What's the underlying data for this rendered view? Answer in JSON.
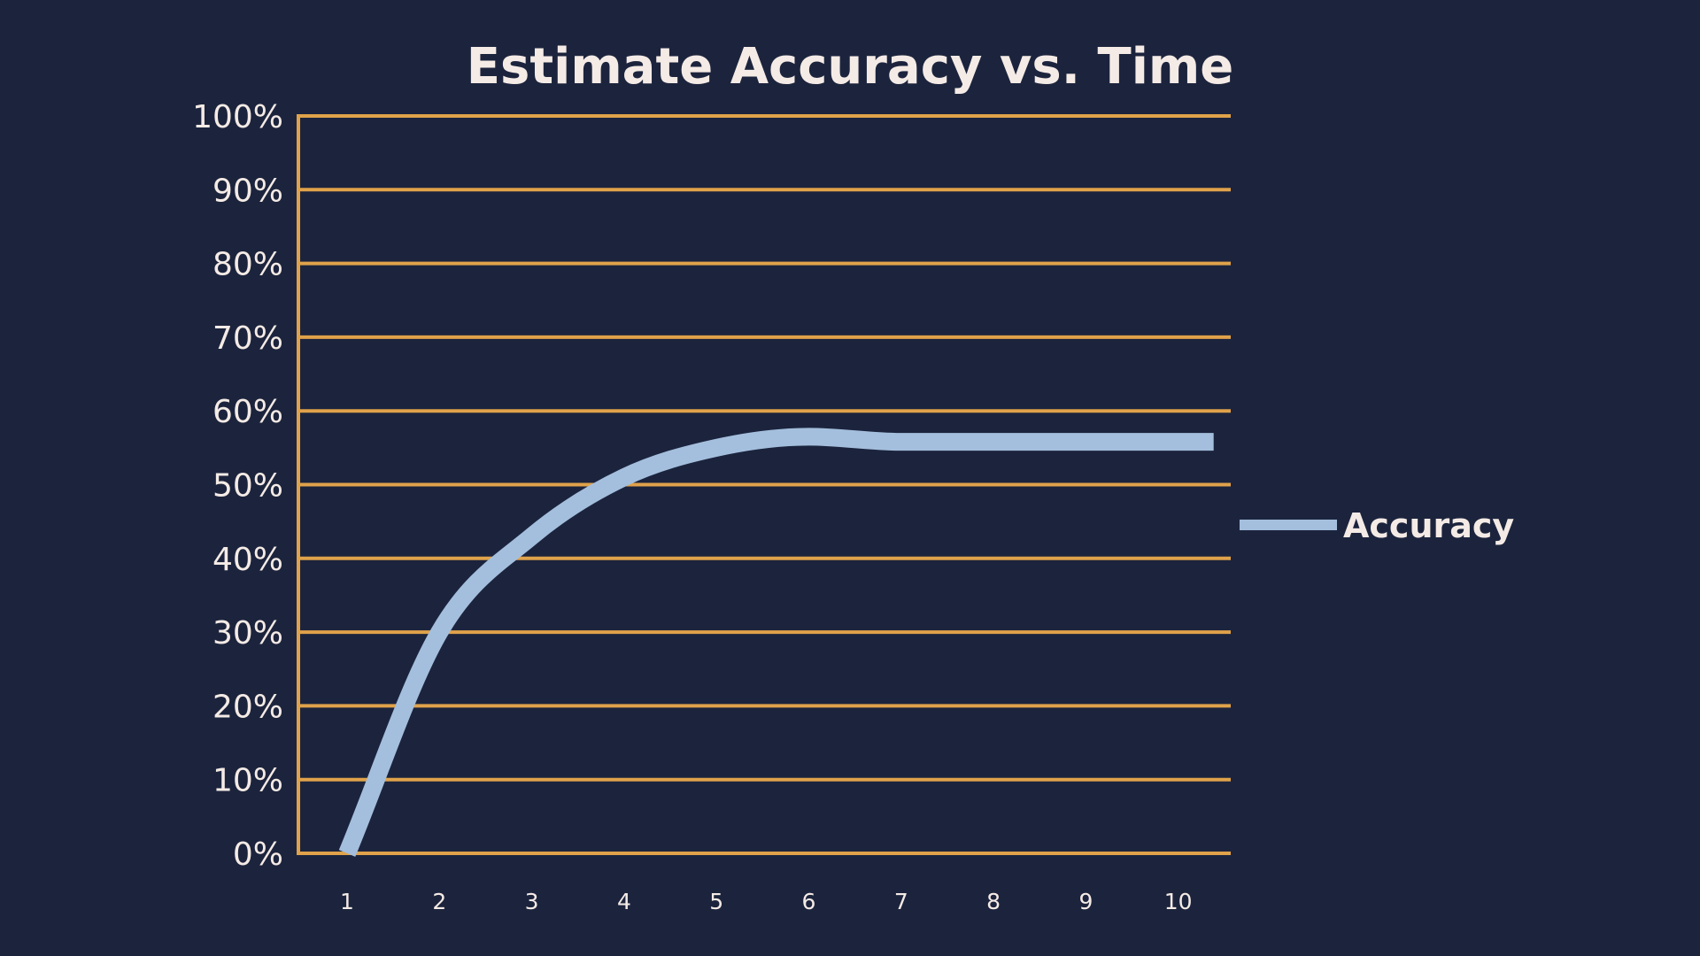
{
  "chart_data": {
    "type": "line",
    "title": "Estimate Accuracy vs. Time",
    "xlabel": "",
    "ylabel": "",
    "x": [
      1,
      2,
      3,
      4,
      5,
      6,
      7,
      8,
      9,
      10
    ],
    "x_tick_labels": [
      "1",
      "2",
      "3",
      "4",
      "5",
      "6",
      "7",
      "8",
      "9",
      "10"
    ],
    "y_tick_labels": [
      "0%",
      "10%",
      "20%",
      "30%",
      "40%",
      "50%",
      "60%",
      "70%",
      "80%",
      "90%",
      "100%"
    ],
    "ylim": [
      0,
      100
    ],
    "y_unit": "%",
    "grid": true,
    "legend_position": "right",
    "series": [
      {
        "name": "Accuracy",
        "values": [
          0,
          30,
          43,
          51,
          55,
          56.5,
          55.8,
          55.8,
          55.8,
          55.8
        ]
      }
    ],
    "colors": {
      "background": "#1c243d",
      "grid": "#e0a24a",
      "line": "#a4bfdd",
      "text": "#f5ebe6"
    }
  }
}
